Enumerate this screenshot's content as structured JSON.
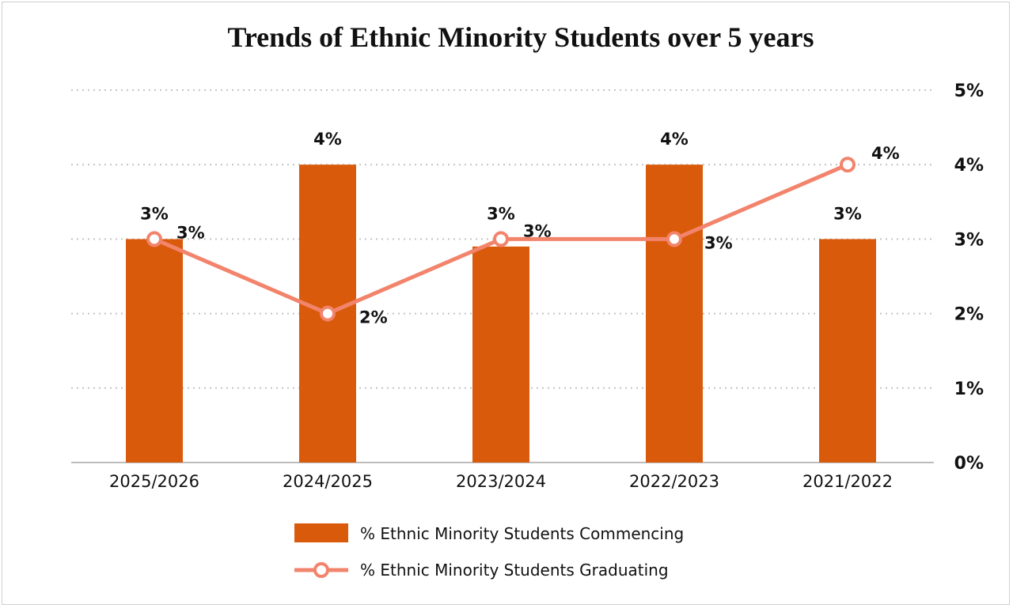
{
  "chart_data": {
    "type": "bar",
    "title": "Trends of Ethnic Minority Students over 5 years",
    "categories": [
      "2025/2026",
      "2024/2025",
      "2023/2024",
      "2022/2023",
      "2021/2022"
    ],
    "series": [
      {
        "name": "% Ethnic Minority Students Commencing",
        "type": "bar",
        "color": "#d95a0b",
        "values": [
          3,
          4,
          2.9,
          4,
          3
        ],
        "labels": [
          "3%",
          "4%",
          "3%",
          "4%",
          "3%"
        ]
      },
      {
        "name": "% Ethnic Minority Students Graduating",
        "type": "line",
        "color": "#f2846c",
        "values": [
          3,
          2,
          3,
          3,
          4
        ],
        "labels": [
          "3%",
          "2%",
          "3%",
          "3%",
          "4%"
        ]
      }
    ],
    "y_axis": {
      "position": "right",
      "min": 0,
      "max": 5,
      "ticks": [
        0,
        1,
        2,
        3,
        4,
        5
      ],
      "tick_labels": [
        "0%",
        "1%",
        "2%",
        "3%",
        "4%",
        "5%"
      ]
    },
    "xlabel": "",
    "ylabel": "",
    "grid": true,
    "legend_position": "bottom"
  }
}
